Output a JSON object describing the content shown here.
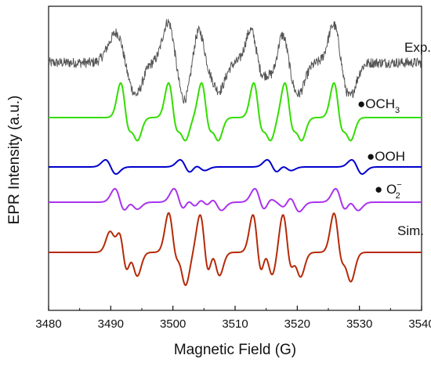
{
  "chart_data": {
    "type": "line",
    "title": "",
    "xlabel": "Magnetic Field  (G)",
    "ylabel": "EPR Intensity  (a.u.)",
    "xlim": [
      3480,
      3540
    ],
    "xticks": [
      "3480",
      "3490",
      "3500",
      "3510",
      "3520",
      "3530",
      "3540"
    ],
    "y_ticks_shown": false,
    "grid": false,
    "legend": "labels at right of each trace",
    "colors": {
      "exp": "#555555",
      "och3": "#33dd00",
      "ooh": "#0000cc",
      "o2": "#aa33ee",
      "sim": "#b52a08"
    },
    "series": [
      {
        "key": "exp",
        "label": "Exp.",
        "kind": "experimental",
        "note": "noisy trace, sum of all radical contributions",
        "peaks": [
          [
            3490.5,
            0.3
          ],
          [
            3492.0,
            1.0
          ],
          [
            3493.5,
            0.7
          ],
          [
            3500.0,
            1.0
          ],
          [
            3501.3,
            0.8
          ],
          [
            3505.0,
            1.0
          ],
          [
            3506.7,
            0.7
          ],
          [
            3513.5,
            1.0
          ],
          [
            3515.5,
            0.6
          ],
          [
            3518.3,
            1.0
          ],
          [
            3519.7,
            0.6
          ],
          [
            3526.7,
            1.0
          ],
          [
            3528.0,
            0.6
          ]
        ]
      },
      {
        "key": "och3",
        "label": "●OCH",
        "sub": "3",
        "kind": "simulation",
        "peaks": [
          [
            3492.3,
            1.0
          ],
          [
            3493.7,
            0.6
          ],
          [
            3500.0,
            1.0
          ],
          [
            3501.4,
            0.6
          ],
          [
            3505.3,
            1.0
          ],
          [
            3506.7,
            0.6
          ],
          [
            3513.7,
            1.0
          ],
          [
            3515.1,
            0.6
          ],
          [
            3518.7,
            1.0
          ],
          [
            3520.1,
            0.6
          ],
          [
            3526.6,
            1.0
          ],
          [
            3528.0,
            0.6
          ]
        ]
      },
      {
        "key": "ooh",
        "label": "●OOH",
        "kind": "simulation",
        "peaks": [
          [
            3490.0,
            1.0
          ],
          [
            3502.0,
            1.0
          ],
          [
            3504.3,
            0.5
          ],
          [
            3516.0,
            1.0
          ],
          [
            3518.2,
            0.5
          ],
          [
            3529.6,
            1.0
          ]
        ]
      },
      {
        "key": "o2",
        "label": "● O",
        "sub": "2",
        "sup": "−",
        "kind": "simulation",
        "peaks": [
          [
            3491.5,
            1.0
          ],
          [
            3493.5,
            0.5
          ],
          [
            3501.0,
            1.0
          ],
          [
            3503.0,
            0.7
          ],
          [
            3505.0,
            0.6
          ],
          [
            3507.0,
            0.6
          ],
          [
            3514.0,
            1.0
          ],
          [
            3516.0,
            0.6
          ],
          [
            3517.4,
            0.6
          ],
          [
            3519.5,
            0.7
          ],
          [
            3527.0,
            1.0
          ],
          [
            3529.0,
            0.6
          ]
        ]
      },
      {
        "key": "sim",
        "label": "Sim.",
        "kind": "simulation",
        "note": "sum of the three component simulations",
        "peaks": [
          [
            3490.5,
            0.5
          ],
          [
            3492.0,
            1.0
          ],
          [
            3493.6,
            0.6
          ],
          [
            3500.0,
            1.0
          ],
          [
            3501.4,
            0.8
          ],
          [
            3505.1,
            1.0
          ],
          [
            3506.8,
            0.6
          ],
          [
            3513.6,
            1.0
          ],
          [
            3515.3,
            0.6
          ],
          [
            3518.4,
            1.0
          ],
          [
            3519.9,
            0.6
          ],
          [
            3526.6,
            1.0
          ],
          [
            3528.0,
            0.7
          ]
        ]
      }
    ]
  }
}
